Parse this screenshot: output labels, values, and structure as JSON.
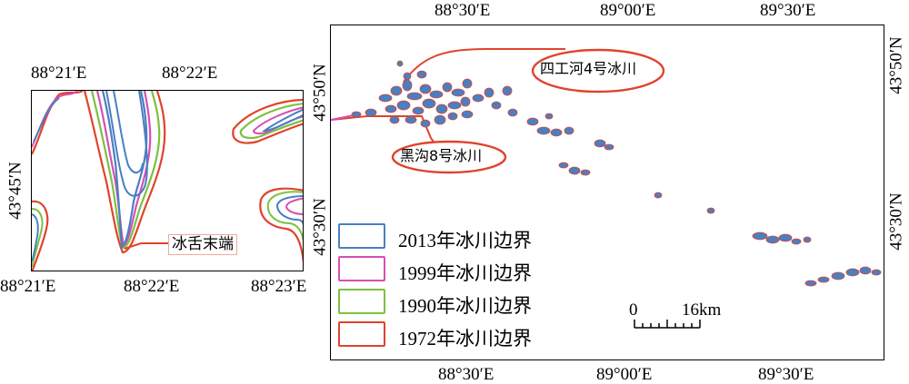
{
  "inset_map": {
    "top_ticks": [
      "88°21′E",
      "88°22′E"
    ],
    "bottom_ticks": [
      "88°21′E",
      "88°22′E",
      "88°23′E"
    ],
    "left_tick": "43°45′N",
    "tongue_label": "冰舌末端"
  },
  "main_map": {
    "top_ticks": [
      "88°30′E",
      "89°00′E",
      "89°30′E"
    ],
    "bottom_ticks": [
      "88°30′E",
      "89°00′E",
      "89°30′E"
    ],
    "left_ticks": [
      "43°50′N",
      "43°30′N"
    ],
    "right_ticks": [
      "43°50′N",
      "43°30′N"
    ],
    "callout_sigonghe": "四工河4号冰川",
    "callout_heigou": "黑沟8号冰川",
    "scale_bar": {
      "start_label": "0",
      "end_label": "16km"
    }
  },
  "legend": [
    {
      "label": "2013年冰川边界",
      "color": "#4a7fc1"
    },
    {
      "label": "1999年冰川边界",
      "color": "#d64fb5"
    },
    {
      "label": "1990年冰川边界",
      "color": "#7cc142"
    },
    {
      "label": "1972年冰川边界",
      "color": "#e0432d"
    }
  ],
  "colors": {
    "y2013": "#4a7fc1",
    "y1999": "#d64fb5",
    "y1990": "#7cc142",
    "y1972": "#e0432d",
    "callout": "#e0432d",
    "tongue_box": "#f0a8a0"
  }
}
